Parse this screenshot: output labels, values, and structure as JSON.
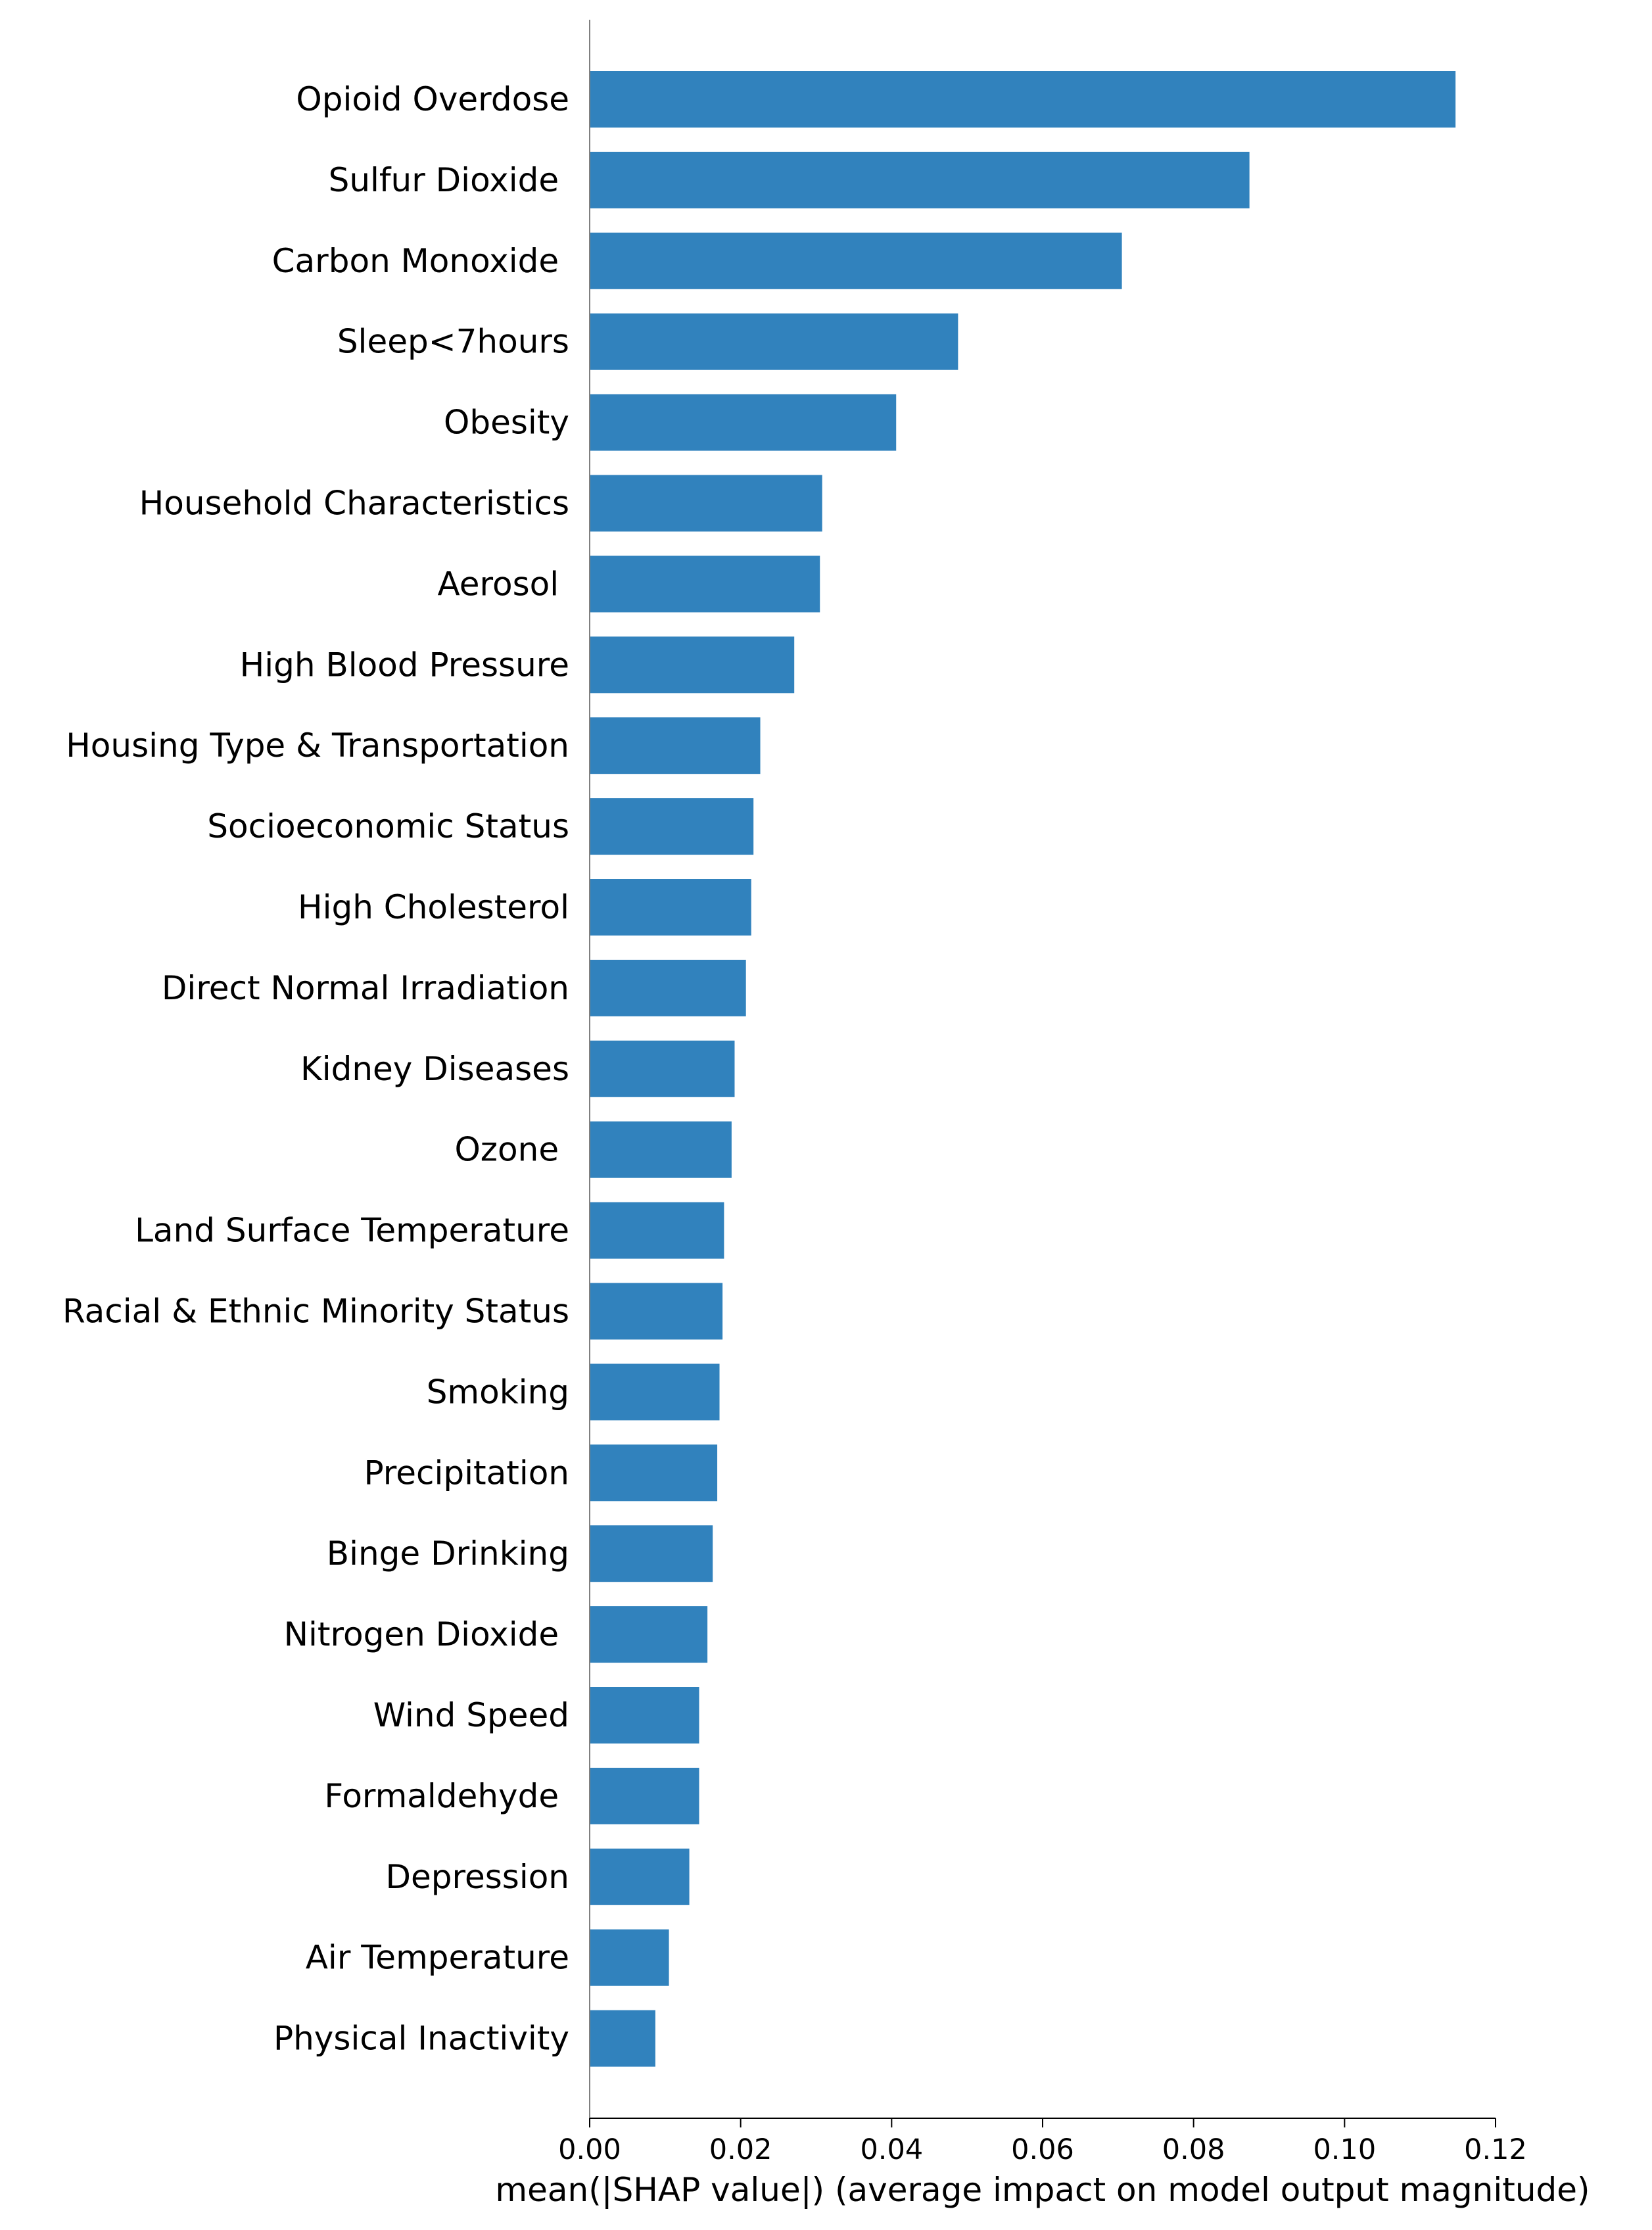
{
  "colors": {
    "bar": "#3182bd",
    "axis": "#808080",
    "text": "#000000",
    "background": "#ffffff"
  },
  "chart_data": {
    "type": "bar",
    "orientation": "horizontal",
    "title": "",
    "xlabel": "mean(|SHAP value|) (average impact on model output magnitude)",
    "ylabel": "",
    "xlim": [
      0,
      0.12
    ],
    "xticks": [
      0.0,
      0.02,
      0.04,
      0.06,
      0.08,
      0.1,
      0.12
    ],
    "xtick_labels": [
      "0.00",
      "0.02",
      "0.04",
      "0.06",
      "0.08",
      "0.10",
      "0.12"
    ],
    "grid": false,
    "legend": "none",
    "categories": [
      "Opioid Overdose",
      "Sulfur Dioxide ",
      "Carbon Monoxide ",
      "Sleep<7hours",
      "Obesity",
      "Household Characteristics",
      "Aerosol ",
      "High Blood Pressure",
      "Housing Type & Transportation",
      "Socioeconomic Status",
      "High Cholesterol",
      "Direct Normal Irradiation",
      "Kidney Diseases",
      "Ozone ",
      "Land Surface Temperature",
      "Racial & Ethnic Minority Status",
      "Smoking",
      "Precipitation",
      "Binge Drinking",
      "Nitrogen Dioxide ",
      "Wind Speed",
      "Formaldehyde ",
      "Depression",
      "Air Temperature",
      "Physical Inactivity"
    ],
    "values": [
      0.1147,
      0.0874,
      0.0705,
      0.0488,
      0.0406,
      0.0308,
      0.0305,
      0.0271,
      0.0226,
      0.0217,
      0.0214,
      0.0207,
      0.0192,
      0.0188,
      0.0178,
      0.0176,
      0.0172,
      0.0169,
      0.0163,
      0.0156,
      0.0145,
      0.0145,
      0.0132,
      0.0105,
      0.0087
    ]
  }
}
